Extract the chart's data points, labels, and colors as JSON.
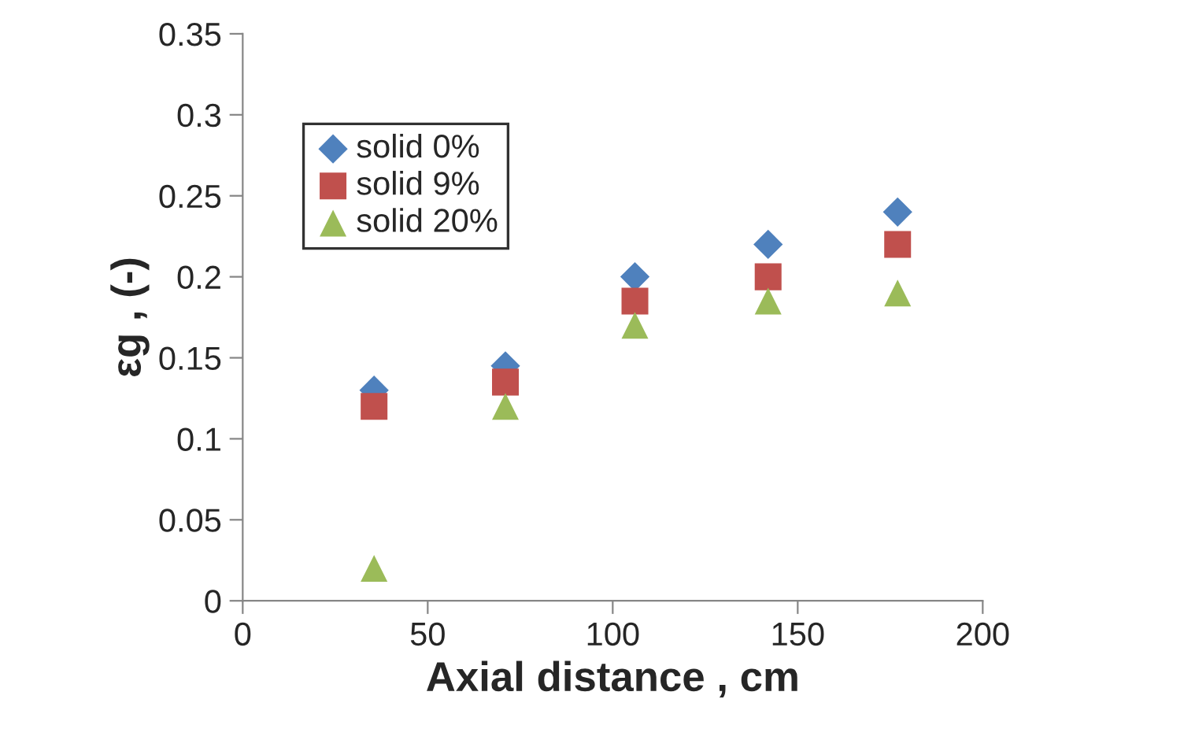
{
  "chart_data": {
    "type": "scatter",
    "xlabel": "Axial distance , cm",
    "ylabel": "εg , (-)",
    "x": [
      35.5,
      71,
      106,
      142,
      177
    ],
    "series": [
      {
        "name": "solid 0%",
        "color": "#4f81bd",
        "marker": "diamond",
        "values": [
          0.13,
          0.145,
          0.2,
          0.22,
          0.24
        ]
      },
      {
        "name": "solid 9%",
        "color": "#c0504d",
        "marker": "square",
        "values": [
          0.12,
          0.135,
          0.185,
          0.2,
          0.22
        ]
      },
      {
        "name": "solid 20%",
        "color": "#9bbb59",
        "marker": "triangle",
        "values": [
          0.02,
          0.12,
          0.17,
          0.185,
          0.19
        ]
      }
    ],
    "xlim": [
      0,
      200
    ],
    "xticks": [
      0,
      50,
      100,
      150,
      200
    ],
    "ylim": [
      0,
      0.35
    ],
    "yticks": [
      0,
      0.05,
      0.1,
      0.15,
      0.2,
      0.25,
      0.3,
      0.35
    ],
    "grid": false,
    "legend": "top left"
  }
}
